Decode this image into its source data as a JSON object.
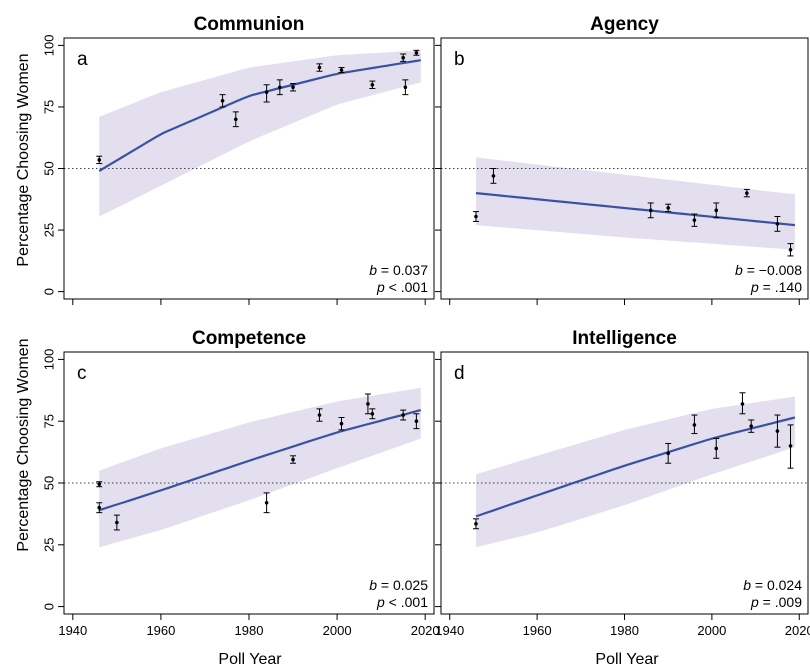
{
  "figure": {
    "ylabel": "Percentage Choosing Women",
    "xlabel": "Poll Year",
    "reference_line": 50
  },
  "colors": {
    "fit": "#3a52a3",
    "band": "#e3dfee",
    "points": "#000000",
    "reference": "#444444"
  },
  "chart_data": [
    {
      "type": "scatter",
      "title": "Communion",
      "letter": "a",
      "b_label": "b",
      "b_value": "= 0.037",
      "p_label": "p",
      "p_value": "< .001",
      "xlim": [
        1938,
        2022
      ],
      "ylim": [
        -3,
        103
      ],
      "xticks": [
        1940,
        1960,
        1980,
        2000,
        2020
      ],
      "xtick_labels": [
        "1940",
        "1960",
        "1980",
        "2000",
        "2020"
      ],
      "yticks": [
        0,
        25,
        50,
        75,
        100
      ],
      "ytick_labels": [
        "0",
        "25",
        "50",
        "75",
        "100"
      ],
      "points": [
        {
          "x": 1946,
          "y": 53.5,
          "lo": 52,
          "hi": 55
        },
        {
          "x": 1974,
          "y": 77.5,
          "lo": 75,
          "hi": 80
        },
        {
          "x": 1977,
          "y": 70,
          "lo": 67,
          "hi": 73
        },
        {
          "x": 1984,
          "y": 81,
          "lo": 77,
          "hi": 84
        },
        {
          "x": 1987,
          "y": 83,
          "lo": 80,
          "hi": 86
        },
        {
          "x": 1990,
          "y": 83,
          "lo": 81.5,
          "hi": 84.5
        },
        {
          "x": 1996,
          "y": 91,
          "lo": 89.5,
          "hi": 92.5
        },
        {
          "x": 2001,
          "y": 90,
          "lo": 89,
          "hi": 91
        },
        {
          "x": 2008,
          "y": 84,
          "lo": 82.5,
          "hi": 85.5
        },
        {
          "x": 2015,
          "y": 95,
          "lo": 93.5,
          "hi": 96.5
        },
        {
          "x": 2015.5,
          "y": 83,
          "lo": 80,
          "hi": 86
        },
        {
          "x": 2018,
          "y": 97,
          "lo": 96,
          "hi": 98
        }
      ],
      "fit": {
        "x": [
          1946,
          1960,
          1980,
          2000,
          2019
        ],
        "y": [
          49,
          64,
          79.5,
          88.5,
          94
        ]
      },
      "band": {
        "x": [
          1946,
          1960,
          1980,
          2000,
          2019
        ],
        "upper": [
          71,
          81,
          91,
          96,
          98
        ],
        "lower": [
          30.5,
          43,
          61,
          76,
          85
        ]
      }
    },
    {
      "type": "scatter",
      "title": "Agency",
      "letter": "b",
      "b_label": "b",
      "b_value": "= −0.008",
      "p_label": "p",
      "p_value": "= .140",
      "xlim": [
        1938,
        2022
      ],
      "ylim": [
        -3,
        103
      ],
      "xticks": [
        1940,
        1960,
        1980,
        2000,
        2020
      ],
      "xtick_labels": [
        "1940",
        "1960",
        "1980",
        "2000",
        "2020"
      ],
      "yticks": [
        0,
        25,
        50,
        75,
        100
      ],
      "ytick_labels": [
        "0",
        "25",
        "50",
        "75",
        "100"
      ],
      "points": [
        {
          "x": 1946,
          "y": 30.5,
          "lo": 28.5,
          "hi": 32.5
        },
        {
          "x": 1950,
          "y": 47,
          "lo": 44,
          "hi": 50
        },
        {
          "x": 1986,
          "y": 33,
          "lo": 30,
          "hi": 36
        },
        {
          "x": 1990,
          "y": 34,
          "lo": 32.5,
          "hi": 35.5
        },
        {
          "x": 1996,
          "y": 29,
          "lo": 26.5,
          "hi": 31.5
        },
        {
          "x": 2001,
          "y": 33,
          "lo": 30,
          "hi": 36
        },
        {
          "x": 2008,
          "y": 40,
          "lo": 38.5,
          "hi": 41.5
        },
        {
          "x": 2015,
          "y": 27.5,
          "lo": 24.5,
          "hi": 30.5
        },
        {
          "x": 2018,
          "y": 17,
          "lo": 14.5,
          "hi": 19.5
        }
      ],
      "fit": {
        "x": [
          1946,
          2019
        ],
        "y": [
          40,
          27
        ]
      },
      "band": {
        "x": [
          1946,
          1980,
          2019
        ],
        "upper": [
          54.5,
          47.5,
          39.5
        ],
        "lower": [
          27,
          22,
          17
        ]
      }
    },
    {
      "type": "scatter",
      "title": "Competence",
      "letter": "c",
      "b_label": "b",
      "b_value": "= 0.025",
      "p_label": "p",
      "p_value": "< .001",
      "xlim": [
        1938,
        2022
      ],
      "ylim": [
        -3,
        103
      ],
      "xticks": [
        1940,
        1960,
        1980,
        2000,
        2020
      ],
      "xtick_labels": [
        "1940",
        "1960",
        "1980",
        "2000",
        "2020"
      ],
      "yticks": [
        0,
        25,
        50,
        75,
        100
      ],
      "ytick_labels": [
        "0",
        "25",
        "50",
        "75",
        "100"
      ],
      "points": [
        {
          "x": 1946,
          "y": 40,
          "lo": 38,
          "hi": 42
        },
        {
          "x": 1946,
          "y": 49.5,
          "lo": 48.5,
          "hi": 50.5
        },
        {
          "x": 1950,
          "y": 34,
          "lo": 31,
          "hi": 37
        },
        {
          "x": 1984,
          "y": 42,
          "lo": 38,
          "hi": 46
        },
        {
          "x": 1990,
          "y": 59.5,
          "lo": 58,
          "hi": 61
        },
        {
          "x": 1996,
          "y": 77.5,
          "lo": 75,
          "hi": 80
        },
        {
          "x": 2001,
          "y": 74,
          "lo": 71.5,
          "hi": 76.5
        },
        {
          "x": 2007,
          "y": 82,
          "lo": 78,
          "hi": 86
        },
        {
          "x": 2008,
          "y": 78,
          "lo": 76,
          "hi": 80
        },
        {
          "x": 2015,
          "y": 77.5,
          "lo": 75.5,
          "hi": 79.5
        },
        {
          "x": 2018,
          "y": 75,
          "lo": 72,
          "hi": 78
        }
      ],
      "fit": {
        "x": [
          1946,
          1960,
          1980,
          2000,
          2019
        ],
        "y": [
          39,
          47,
          59,
          70.5,
          79.5
        ]
      },
      "band": {
        "x": [
          1946,
          1960,
          1980,
          2000,
          2019
        ],
        "upper": [
          55,
          64,
          74.5,
          83,
          88.5
        ],
        "lower": [
          24,
          31,
          43,
          56,
          68
        ]
      }
    },
    {
      "type": "scatter",
      "title": "Intelligence",
      "letter": "d",
      "b_label": "b",
      "b_value": "= 0.024",
      "p_label": "p",
      "p_value": "= .009",
      "xlim": [
        1938,
        2022
      ],
      "ylim": [
        -3,
        103
      ],
      "xticks": [
        1940,
        1960,
        1980,
        2000,
        2020
      ],
      "xtick_labels": [
        "1940",
        "1960",
        "1980",
        "2000",
        "2020"
      ],
      "yticks": [
        0,
        25,
        50,
        75,
        100
      ],
      "ytick_labels": [
        "0",
        "25",
        "50",
        "75",
        "100"
      ],
      "points": [
        {
          "x": 1946,
          "y": 33.5,
          "lo": 31.5,
          "hi": 35.5
        },
        {
          "x": 1990,
          "y": 62,
          "lo": 58,
          "hi": 66
        },
        {
          "x": 1996,
          "y": 73.5,
          "lo": 70,
          "hi": 77.5
        },
        {
          "x": 2001,
          "y": 64,
          "lo": 60,
          "hi": 68
        },
        {
          "x": 2007,
          "y": 82,
          "lo": 78,
          "hi": 86.5
        },
        {
          "x": 2009,
          "y": 73,
          "lo": 70.5,
          "hi": 75.5
        },
        {
          "x": 2015,
          "y": 71,
          "lo": 64.5,
          "hi": 77.5
        },
        {
          "x": 2018,
          "y": 65,
          "lo": 56,
          "hi": 73.5
        }
      ],
      "fit": {
        "x": [
          1946,
          1960,
          1980,
          2000,
          2019
        ],
        "y": [
          36.5,
          45,
          57,
          68,
          76.5
        ]
      },
      "band": {
        "x": [
          1946,
          1960,
          1980,
          2000,
          2019
        ],
        "upper": [
          53.5,
          61,
          71.5,
          80,
          85
        ],
        "lower": [
          24,
          30,
          41,
          53.5,
          64.5
        ]
      }
    }
  ]
}
